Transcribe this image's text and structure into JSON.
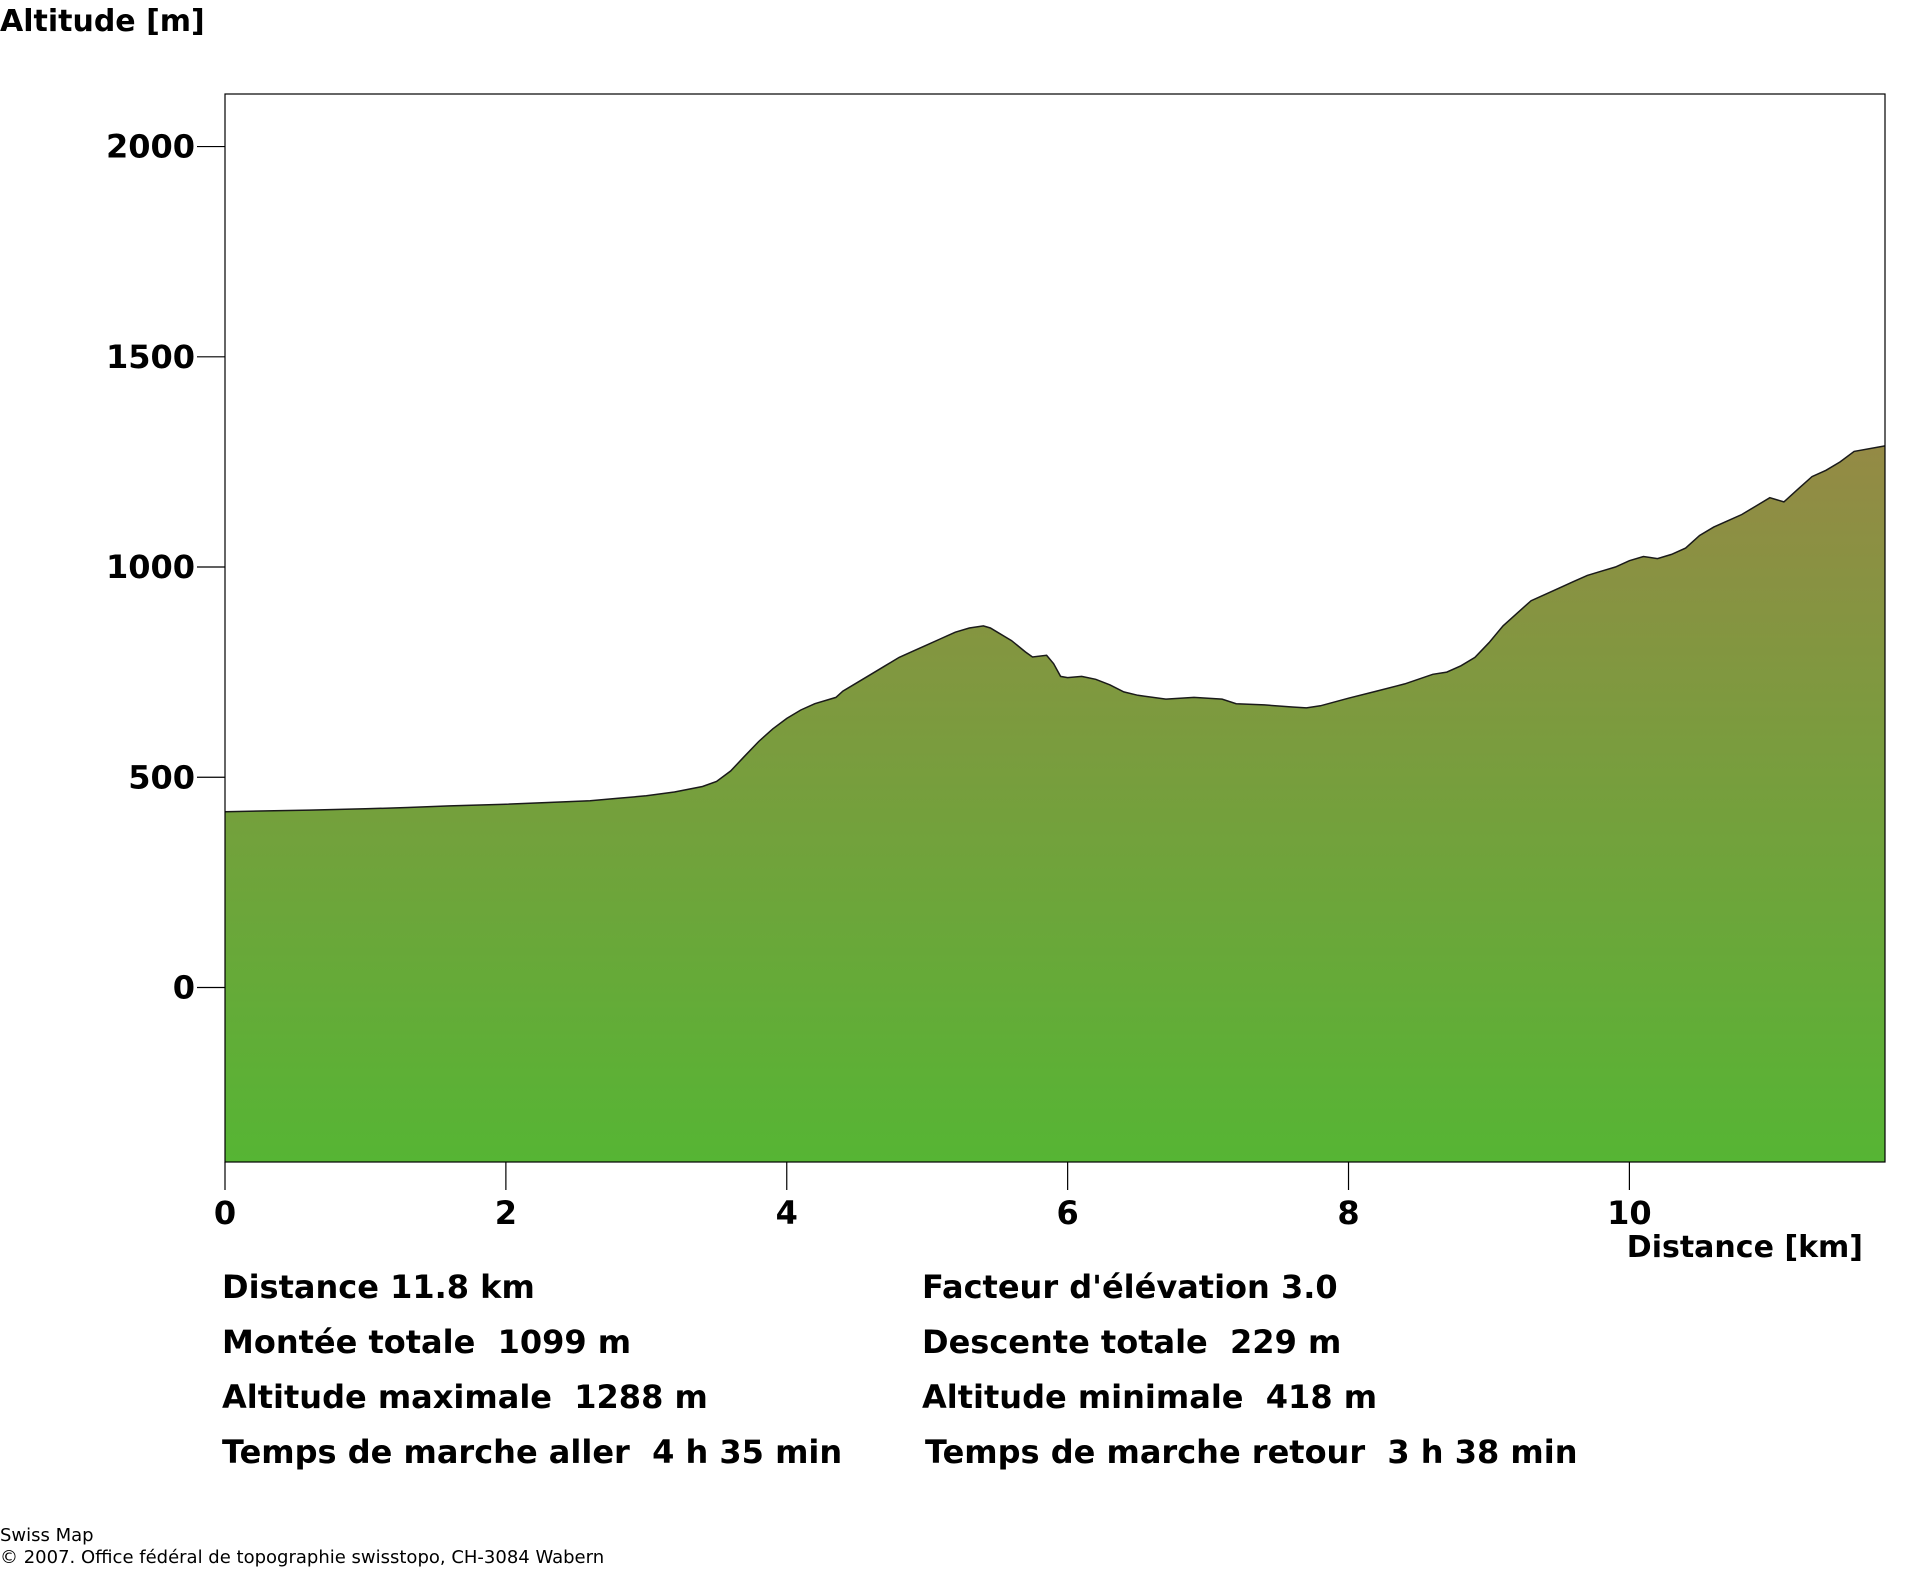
{
  "chart_data": {
    "type": "area",
    "ylabel": "Altitude [m]",
    "xlabel": "Distance [km]",
    "xlim": [
      0,
      11.82
    ],
    "ylim": [
      -415,
      2125
    ],
    "x_ticks": [
      0,
      2,
      4,
      6,
      8,
      10
    ],
    "y_ticks": [
      0,
      500,
      1000,
      1500,
      2000
    ],
    "grid": false,
    "fill_gradient": {
      "top": "#948a45",
      "bottom": "#56b534"
    },
    "series": [
      {
        "x": [
          0,
          0.3,
          0.6,
          1.0,
          1.3,
          1.6,
          2.0,
          2.3,
          2.6,
          2.8,
          3.0,
          3.2,
          3.4,
          3.5,
          3.6,
          3.7,
          3.8,
          3.9,
          4.0,
          4.1,
          4.2,
          4.35,
          4.4,
          4.5,
          4.6,
          4.7,
          4.8,
          4.9,
          5.0,
          5.1,
          5.2,
          5.3,
          5.4,
          5.45,
          5.5,
          5.6,
          5.7,
          5.75,
          5.85,
          5.9,
          5.95,
          6.0,
          6.1,
          6.2,
          6.3,
          6.4,
          6.5,
          6.7,
          6.9,
          7.1,
          7.2,
          7.4,
          7.6,
          7.7,
          7.8,
          8.0,
          8.2,
          8.4,
          8.6,
          8.7,
          8.8,
          8.9,
          9.0,
          9.1,
          9.2,
          9.3,
          9.4,
          9.5,
          9.6,
          9.7,
          9.8,
          9.9,
          10.0,
          10.1,
          10.2,
          10.3,
          10.4,
          10.5,
          10.6,
          10.7,
          10.8,
          10.9,
          11.0,
          11.1,
          11.2,
          11.3,
          11.4,
          11.5,
          11.6,
          11.82
        ],
        "y": [
          418,
          420,
          422,
          425,
          428,
          432,
          436,
          440,
          444,
          450,
          456,
          465,
          478,
          490,
          515,
          550,
          585,
          615,
          640,
          660,
          675,
          690,
          705,
          725,
          745,
          765,
          785,
          800,
          815,
          830,
          845,
          855,
          860,
          855,
          845,
          825,
          798,
          786,
          790,
          770,
          740,
          737,
          740,
          733,
          720,
          703,
          695,
          686,
          690,
          686,
          675,
          672,
          667,
          665,
          670,
          688,
          705,
          722,
          745,
          750,
          765,
          785,
          820,
          860,
          890,
          920,
          935,
          950,
          965,
          980,
          990,
          1000,
          1015,
          1025,
          1020,
          1030,
          1045,
          1075,
          1095,
          1110,
          1125,
          1145,
          1165,
          1155,
          1185,
          1215,
          1230,
          1250,
          1275,
          1288
        ]
      }
    ]
  },
  "stats": {
    "distance": "Distance 11.8 km",
    "elevation_factor": "Facteur d'élévation 3.0",
    "total_ascent": "Montée totale  1099 m",
    "total_descent": "Descente totale  229 m",
    "max_altitude": "Altitude maximale  1288 m",
    "min_altitude": "Altitude minimale  418 m",
    "walk_time_out": "Temps de marche aller  4 h 35 min",
    "walk_time_back": "Temps de marche retour  3 h 38 min"
  },
  "credit": {
    "line1": "Swiss Map",
    "line2": "© 2007. Office fédéral de topographie swisstopo, CH-3084 Wabern"
  }
}
